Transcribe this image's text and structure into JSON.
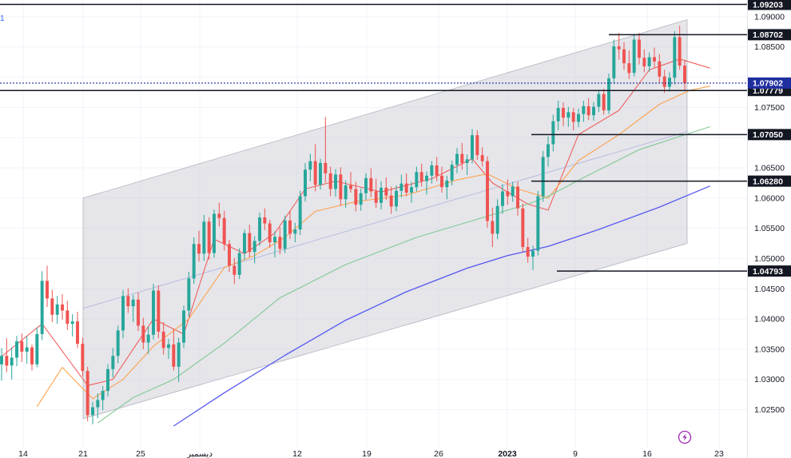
{
  "chart_data": {
    "type": "candlestick",
    "ylim": [
      1.022,
      1.093
    ],
    "grid": true,
    "price_axis": {
      "ticks": [
        {
          "value": 1.09,
          "label": "1.09000"
        },
        {
          "value": 1.085,
          "label": "1.08500"
        },
        {
          "value": 1.08,
          "label": "1.08000"
        },
        {
          "value": 1.075,
          "label": "1.07500"
        },
        {
          "value": 1.07,
          "label": "1.07000"
        },
        {
          "value": 1.065,
          "label": "1.06500"
        },
        {
          "value": 1.06,
          "label": "1.06000"
        },
        {
          "value": 1.055,
          "label": "1.05500"
        },
        {
          "value": 1.05,
          "label": "1.05000"
        },
        {
          "value": 1.045,
          "label": "1.04500"
        },
        {
          "value": 1.04,
          "label": "1.04000"
        },
        {
          "value": 1.035,
          "label": "1.03500"
        },
        {
          "value": 1.03,
          "label": "1.03000"
        },
        {
          "value": 1.025,
          "label": "1.02500"
        }
      ]
    },
    "time_axis": {
      "labels": [
        "14",
        "21",
        "25",
        "ديسمبر",
        "12",
        "19",
        "26",
        "2023",
        "9",
        "16",
        "23"
      ]
    },
    "levels": [
      {
        "value": 1.09203,
        "label": "1.09203",
        "color": "#131722"
      },
      {
        "value": 1.08702,
        "label": "1.08702",
        "color": "#131722"
      },
      {
        "value": 1.07779,
        "label": "1.07779",
        "color": "#131722"
      },
      {
        "value": 1.0705,
        "label": "1.07050",
        "color": "#131722"
      },
      {
        "value": 1.0628,
        "label": "1.06280",
        "color": "#131722"
      },
      {
        "value": 1.04793,
        "label": "1.04793",
        "color": "#131722"
      }
    ],
    "current_price": {
      "value": 1.07902,
      "label": "1.07902",
      "color": "#1e2e9f"
    },
    "channel": {
      "upper": [
        1.06,
        1.0895
      ],
      "lower": [
        1.0235,
        1.0525
      ],
      "fill": "#cfd0d8"
    },
    "colors": {
      "up": "#26a69a",
      "down": "#ef5350",
      "ma_fast": "#f0605d",
      "ma_mid": "#ffa24c",
      "ma_slow": "#81c995",
      "ma_long": "#5658f0"
    },
    "candles": [
      {
        "o": 1.0325,
        "h": 1.0352,
        "l": 1.0298,
        "c": 1.0339
      },
      {
        "o": 1.0339,
        "h": 1.0368,
        "l": 1.0312,
        "c": 1.0323
      },
      {
        "o": 1.0323,
        "h": 1.0353,
        "l": 1.03,
        "c": 1.0336
      },
      {
        "o": 1.0336,
        "h": 1.0372,
        "l": 1.0322,
        "c": 1.0363
      },
      {
        "o": 1.0363,
        "h": 1.0376,
        "l": 1.0329,
        "c": 1.0346
      },
      {
        "o": 1.0346,
        "h": 1.0371,
        "l": 1.0326,
        "c": 1.0353
      },
      {
        "o": 1.0353,
        "h": 1.0358,
        "l": 1.0315,
        "c": 1.0325
      },
      {
        "o": 1.0325,
        "h": 1.0386,
        "l": 1.032,
        "c": 1.0375
      },
      {
        "o": 1.0375,
        "h": 1.0479,
        "l": 1.0365,
        "c": 1.0463
      },
      {
        "o": 1.0463,
        "h": 1.0488,
        "l": 1.042,
        "c": 1.0434
      },
      {
        "o": 1.0434,
        "h": 1.0448,
        "l": 1.0395,
        "c": 1.0407
      },
      {
        "o": 1.0407,
        "h": 1.0438,
        "l": 1.0392,
        "c": 1.0424
      },
      {
        "o": 1.0424,
        "h": 1.0441,
        "l": 1.0399,
        "c": 1.0414
      },
      {
        "o": 1.0414,
        "h": 1.043,
        "l": 1.0382,
        "c": 1.0392
      },
      {
        "o": 1.0392,
        "h": 1.0408,
        "l": 1.0371,
        "c": 1.0396
      },
      {
        "o": 1.0396,
        "h": 1.0412,
        "l": 1.0352,
        "c": 1.0359
      },
      {
        "o": 1.0359,
        "h": 1.0369,
        "l": 1.0305,
        "c": 1.0314
      },
      {
        "o": 1.0314,
        "h": 1.0321,
        "l": 1.0231,
        "c": 1.0241
      },
      {
        "o": 1.0241,
        "h": 1.0263,
        "l": 1.0226,
        "c": 1.0254
      },
      {
        "o": 1.0254,
        "h": 1.0277,
        "l": 1.0236,
        "c": 1.0266
      },
      {
        "o": 1.0266,
        "h": 1.0289,
        "l": 1.0249,
        "c": 1.0281
      },
      {
        "o": 1.0281,
        "h": 1.0325,
        "l": 1.0272,
        "c": 1.0317
      },
      {
        "o": 1.0317,
        "h": 1.0352,
        "l": 1.0303,
        "c": 1.0339
      },
      {
        "o": 1.0339,
        "h": 1.0389,
        "l": 1.0327,
        "c": 1.0381
      },
      {
        "o": 1.0381,
        "h": 1.0448,
        "l": 1.0368,
        "c": 1.0438
      },
      {
        "o": 1.0438,
        "h": 1.0451,
        "l": 1.041,
        "c": 1.0421
      },
      {
        "o": 1.0421,
        "h": 1.044,
        "l": 1.0395,
        "c": 1.0432
      },
      {
        "o": 1.0432,
        "h": 1.0444,
        "l": 1.038,
        "c": 1.0389
      },
      {
        "o": 1.0389,
        "h": 1.0402,
        "l": 1.035,
        "c": 1.0361
      },
      {
        "o": 1.0361,
        "h": 1.0388,
        "l": 1.0342,
        "c": 1.0374
      },
      {
        "o": 1.0374,
        "h": 1.0458,
        "l": 1.0366,
        "c": 1.0447
      },
      {
        "o": 1.0447,
        "h": 1.0456,
        "l": 1.0368,
        "c": 1.0379
      },
      {
        "o": 1.0379,
        "h": 1.0395,
        "l": 1.0341,
        "c": 1.0352
      },
      {
        "o": 1.0352,
        "h": 1.0367,
        "l": 1.0334,
        "c": 1.0358
      },
      {
        "o": 1.0358,
        "h": 1.0384,
        "l": 1.0315,
        "c": 1.0321
      },
      {
        "o": 1.0321,
        "h": 1.0369,
        "l": 1.0296,
        "c": 1.0361
      },
      {
        "o": 1.0361,
        "h": 1.0422,
        "l": 1.0352,
        "c": 1.0414
      },
      {
        "o": 1.0414,
        "h": 1.0478,
        "l": 1.0404,
        "c": 1.0467
      },
      {
        "o": 1.0467,
        "h": 1.0535,
        "l": 1.0458,
        "c": 1.0524
      },
      {
        "o": 1.0524,
        "h": 1.0546,
        "l": 1.0495,
        "c": 1.0508
      },
      {
        "o": 1.0508,
        "h": 1.0572,
        "l": 1.0496,
        "c": 1.0561
      },
      {
        "o": 1.0561,
        "h": 1.0568,
        "l": 1.0498,
        "c": 1.0509
      },
      {
        "o": 1.0509,
        "h": 1.0581,
        "l": 1.0501,
        "c": 1.0574
      },
      {
        "o": 1.0574,
        "h": 1.0592,
        "l": 1.0553,
        "c": 1.0567
      },
      {
        "o": 1.0567,
        "h": 1.0579,
        "l": 1.0513,
        "c": 1.0524
      },
      {
        "o": 1.0524,
        "h": 1.0531,
        "l": 1.0478,
        "c": 1.0488
      },
      {
        "o": 1.0488,
        "h": 1.0501,
        "l": 1.0458,
        "c": 1.0473
      },
      {
        "o": 1.0473,
        "h": 1.0517,
        "l": 1.0466,
        "c": 1.0509
      },
      {
        "o": 1.0509,
        "h": 1.0548,
        "l": 1.0498,
        "c": 1.0542
      },
      {
        "o": 1.0542,
        "h": 1.0556,
        "l": 1.0502,
        "c": 1.0511
      },
      {
        "o": 1.0511,
        "h": 1.0537,
        "l": 1.0492,
        "c": 1.0529
      },
      {
        "o": 1.0529,
        "h": 1.0576,
        "l": 1.0521,
        "c": 1.0568
      },
      {
        "o": 1.0568,
        "h": 1.0583,
        "l": 1.0547,
        "c": 1.0558
      },
      {
        "o": 1.0558,
        "h": 1.0564,
        "l": 1.0518,
        "c": 1.0527
      },
      {
        "o": 1.0527,
        "h": 1.0545,
        "l": 1.0502,
        "c": 1.0536
      },
      {
        "o": 1.0536,
        "h": 1.0552,
        "l": 1.0507,
        "c": 1.0516
      },
      {
        "o": 1.0516,
        "h": 1.0571,
        "l": 1.0509,
        "c": 1.0563
      },
      {
        "o": 1.0563,
        "h": 1.0578,
        "l": 1.0532,
        "c": 1.0541
      },
      {
        "o": 1.0541,
        "h": 1.0559,
        "l": 1.0527,
        "c": 1.0548
      },
      {
        "o": 1.0548,
        "h": 1.0612,
        "l": 1.0539,
        "c": 1.0603
      },
      {
        "o": 1.0603,
        "h": 1.0658,
        "l": 1.0594,
        "c": 1.0647
      },
      {
        "o": 1.0647,
        "h": 1.0673,
        "l": 1.0628,
        "c": 1.0661
      },
      {
        "o": 1.0661,
        "h": 1.0689,
        "l": 1.0611,
        "c": 1.0622
      },
      {
        "o": 1.0622,
        "h": 1.0665,
        "l": 1.0614,
        "c": 1.0658
      },
      {
        "o": 1.0658,
        "h": 1.0734,
        "l": 1.0626,
        "c": 1.0641
      },
      {
        "o": 1.0641,
        "h": 1.0652,
        "l": 1.0603,
        "c": 1.0615
      },
      {
        "o": 1.0615,
        "h": 1.0648,
        "l": 1.0602,
        "c": 1.0639
      },
      {
        "o": 1.0639,
        "h": 1.0651,
        "l": 1.0587,
        "c": 1.0598
      },
      {
        "o": 1.0598,
        "h": 1.0629,
        "l": 1.0584,
        "c": 1.0621
      },
      {
        "o": 1.0621,
        "h": 1.0643,
        "l": 1.0609,
        "c": 1.0615
      },
      {
        "o": 1.0615,
        "h": 1.0627,
        "l": 1.0578,
        "c": 1.0589
      },
      {
        "o": 1.0589,
        "h": 1.0616,
        "l": 1.0579,
        "c": 1.0608
      },
      {
        "o": 1.0608,
        "h": 1.0641,
        "l": 1.0597,
        "c": 1.0633
      },
      {
        "o": 1.0633,
        "h": 1.0649,
        "l": 1.0601,
        "c": 1.0611
      },
      {
        "o": 1.0611,
        "h": 1.0632,
        "l": 1.0584,
        "c": 1.0592
      },
      {
        "o": 1.0592,
        "h": 1.0628,
        "l": 1.0581,
        "c": 1.0617
      },
      {
        "o": 1.0617,
        "h": 1.0634,
        "l": 1.0597,
        "c": 1.0604
      },
      {
        "o": 1.0604,
        "h": 1.0619,
        "l": 1.0574,
        "c": 1.0586
      },
      {
        "o": 1.0586,
        "h": 1.0621,
        "l": 1.0578,
        "c": 1.0612
      },
      {
        "o": 1.0612,
        "h": 1.0639,
        "l": 1.0601,
        "c": 1.0624
      },
      {
        "o": 1.0624,
        "h": 1.0641,
        "l": 1.0603,
        "c": 1.0609
      },
      {
        "o": 1.0609,
        "h": 1.0627,
        "l": 1.0592,
        "c": 1.0618
      },
      {
        "o": 1.0618,
        "h": 1.0652,
        "l": 1.0611,
        "c": 1.0643
      },
      {
        "o": 1.0643,
        "h": 1.0657,
        "l": 1.0619,
        "c": 1.0628
      },
      {
        "o": 1.0628,
        "h": 1.0644,
        "l": 1.0606,
        "c": 1.0637
      },
      {
        "o": 1.0637,
        "h": 1.0661,
        "l": 1.0624,
        "c": 1.0654
      },
      {
        "o": 1.0654,
        "h": 1.0668,
        "l": 1.0628,
        "c": 1.0637
      },
      {
        "o": 1.0637,
        "h": 1.0652,
        "l": 1.0609,
        "c": 1.0618
      },
      {
        "o": 1.0618,
        "h": 1.0637,
        "l": 1.0598,
        "c": 1.0629
      },
      {
        "o": 1.0629,
        "h": 1.0662,
        "l": 1.0621,
        "c": 1.0655
      },
      {
        "o": 1.0655,
        "h": 1.0683,
        "l": 1.0641,
        "c": 1.0673
      },
      {
        "o": 1.0673,
        "h": 1.0691,
        "l": 1.0647,
        "c": 1.0658
      },
      {
        "o": 1.0658,
        "h": 1.0672,
        "l": 1.0638,
        "c": 1.0664
      },
      {
        "o": 1.0664,
        "h": 1.0714,
        "l": 1.0657,
        "c": 1.0704
      },
      {
        "o": 1.0704,
        "h": 1.0712,
        "l": 1.0663,
        "c": 1.0671
      },
      {
        "o": 1.0671,
        "h": 1.0684,
        "l": 1.0652,
        "c": 1.0661
      },
      {
        "o": 1.0661,
        "h": 1.0669,
        "l": 1.0551,
        "c": 1.0562
      },
      {
        "o": 1.0562,
        "h": 1.0584,
        "l": 1.0519,
        "c": 1.0541
      },
      {
        "o": 1.0541,
        "h": 1.0598,
        "l": 1.0532,
        "c": 1.0587
      },
      {
        "o": 1.0587,
        "h": 1.0623,
        "l": 1.0574,
        "c": 1.0611
      },
      {
        "o": 1.0611,
        "h": 1.0631,
        "l": 1.0589,
        "c": 1.0603
      },
      {
        "o": 1.0603,
        "h": 1.0627,
        "l": 1.0594,
        "c": 1.0619
      },
      {
        "o": 1.0619,
        "h": 1.0627,
        "l": 1.0571,
        "c": 1.0583
      },
      {
        "o": 1.0583,
        "h": 1.0591,
        "l": 1.0511,
        "c": 1.0519
      },
      {
        "o": 1.0519,
        "h": 1.0534,
        "l": 1.0493,
        "c": 1.0503
      },
      {
        "o": 1.0503,
        "h": 1.0521,
        "l": 1.0481,
        "c": 1.0513
      },
      {
        "o": 1.0513,
        "h": 1.0612,
        "l": 1.0505,
        "c": 1.0603
      },
      {
        "o": 1.0603,
        "h": 1.0678,
        "l": 1.0594,
        "c": 1.0668
      },
      {
        "o": 1.0668,
        "h": 1.0702,
        "l": 1.0652,
        "c": 1.0689
      },
      {
        "o": 1.0689,
        "h": 1.0738,
        "l": 1.0677,
        "c": 1.0727
      },
      {
        "o": 1.0727,
        "h": 1.0761,
        "l": 1.0712,
        "c": 1.0749
      },
      {
        "o": 1.0749,
        "h": 1.0758,
        "l": 1.0719,
        "c": 1.0733
      },
      {
        "o": 1.0733,
        "h": 1.0751,
        "l": 1.0718,
        "c": 1.0742
      },
      {
        "o": 1.0742,
        "h": 1.0749,
        "l": 1.0712,
        "c": 1.0726
      },
      {
        "o": 1.0726,
        "h": 1.0748,
        "l": 1.0717,
        "c": 1.0739
      },
      {
        "o": 1.0739,
        "h": 1.0761,
        "l": 1.0726,
        "c": 1.0752
      },
      {
        "o": 1.0752,
        "h": 1.0765,
        "l": 1.0729,
        "c": 1.0737
      },
      {
        "o": 1.0737,
        "h": 1.0759,
        "l": 1.0728,
        "c": 1.0751
      },
      {
        "o": 1.0751,
        "h": 1.0779,
        "l": 1.0742,
        "c": 1.0772
      },
      {
        "o": 1.0772,
        "h": 1.0781,
        "l": 1.0738,
        "c": 1.0745
      },
      {
        "o": 1.0745,
        "h": 1.0806,
        "l": 1.0739,
        "c": 1.0798
      },
      {
        "o": 1.0798,
        "h": 1.0862,
        "l": 1.0789,
        "c": 1.0851
      },
      {
        "o": 1.0851,
        "h": 1.0873,
        "l": 1.0829,
        "c": 1.0846
      },
      {
        "o": 1.0846,
        "h": 1.0858,
        "l": 1.0812,
        "c": 1.0823
      },
      {
        "o": 1.0823,
        "h": 1.0844,
        "l": 1.0797,
        "c": 1.0807
      },
      {
        "o": 1.0807,
        "h": 1.0869,
        "l": 1.0801,
        "c": 1.0862
      },
      {
        "o": 1.0862,
        "h": 1.0873,
        "l": 1.0821,
        "c": 1.0832
      },
      {
        "o": 1.0832,
        "h": 1.0846,
        "l": 1.0808,
        "c": 1.0818
      },
      {
        "o": 1.0818,
        "h": 1.0841,
        "l": 1.0809,
        "c": 1.0833
      },
      {
        "o": 1.0833,
        "h": 1.0849,
        "l": 1.0816,
        "c": 1.0826
      },
      {
        "o": 1.0826,
        "h": 1.0838,
        "l": 1.0791,
        "c": 1.0801
      },
      {
        "o": 1.0801,
        "h": 1.0812,
        "l": 1.0774,
        "c": 1.0784
      },
      {
        "o": 1.0784,
        "h": 1.0808,
        "l": 1.0776,
        "c": 1.0799
      },
      {
        "o": 1.0799,
        "h": 1.0876,
        "l": 1.0788,
        "c": 1.0866
      },
      {
        "o": 1.0866,
        "h": 1.0885,
        "l": 1.0812,
        "c": 1.0819
      },
      {
        "o": 1.0819,
        "h": 1.0828,
        "l": 1.0779,
        "c": 1.079
      }
    ],
    "mas": {
      "ma_fast": [
        [
          0,
          1.0338
        ],
        [
          8,
          1.0392
        ],
        [
          17,
          1.029
        ],
        [
          22,
          1.03
        ],
        [
          30,
          1.04
        ],
        [
          36,
          1.0375
        ],
        [
          42,
          1.0532
        ],
        [
          48,
          1.0508
        ],
        [
          54,
          1.0542
        ],
        [
          60,
          1.0615
        ],
        [
          66,
          1.0628
        ],
        [
          75,
          1.061
        ],
        [
          85,
          1.0632
        ],
        [
          93,
          1.0665
        ],
        [
          97,
          1.0625
        ],
        [
          104,
          1.059
        ],
        [
          108,
          1.058
        ],
        [
          114,
          1.0705
        ],
        [
          122,
          1.0745
        ],
        [
          128,
          1.0812
        ],
        [
          134,
          1.083
        ],
        [
          140,
          1.0815
        ]
      ],
      "ma_mid": [
        [
          7,
          1.0255
        ],
        [
          12,
          1.032
        ],
        [
          18,
          1.0268
        ],
        [
          24,
          1.03
        ],
        [
          30,
          1.0355
        ],
        [
          37,
          1.04
        ],
        [
          44,
          1.0485
        ],
        [
          50,
          1.0505
        ],
        [
          56,
          1.0535
        ],
        [
          62,
          1.0578
        ],
        [
          70,
          1.0594
        ],
        [
          80,
          1.0605
        ],
        [
          90,
          1.063
        ],
        [
          96,
          1.064
        ],
        [
          102,
          1.0615
        ],
        [
          108,
          1.06
        ],
        [
          114,
          1.0662
        ],
        [
          122,
          1.0705
        ],
        [
          130,
          1.0755
        ],
        [
          136,
          1.0778
        ],
        [
          140,
          1.0785
        ]
      ],
      "ma_slow": [
        [
          19,
          1.0228
        ],
        [
          26,
          1.027
        ],
        [
          34,
          1.03
        ],
        [
          44,
          1.036
        ],
        [
          55,
          1.0435
        ],
        [
          68,
          1.049
        ],
        [
          82,
          1.0535
        ],
        [
          96,
          1.057
        ],
        [
          104,
          1.059
        ],
        [
          108,
          1.0603
        ],
        [
          116,
          1.0638
        ],
        [
          126,
          1.068
        ],
        [
          134,
          1.0702
        ],
        [
          140,
          1.0718
        ]
      ],
      "ma_long": [
        [
          34,
          1.0223
        ],
        [
          44,
          1.0278
        ],
        [
          56,
          1.034
        ],
        [
          68,
          1.0398
        ],
        [
          80,
          1.0445
        ],
        [
          92,
          1.0484
        ],
        [
          100,
          1.0505
        ],
        [
          108,
          1.052
        ],
        [
          118,
          1.0548
        ],
        [
          130,
          1.0585
        ],
        [
          140,
          1.062
        ]
      ]
    }
  }
}
